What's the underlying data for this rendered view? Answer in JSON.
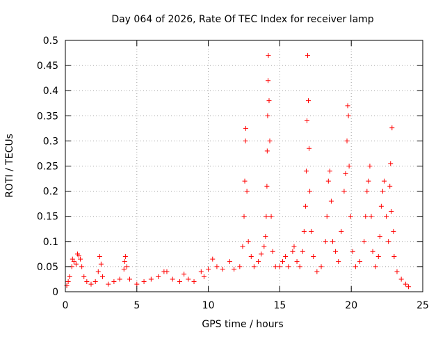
{
  "chart_data": {
    "type": "scatter",
    "title": "Day 064 of 2026, Rate Of TEC Index for receiver lamp",
    "xlabel": "GPS time / hours",
    "ylabel": "ROTI / TECUs",
    "xlim": [
      0,
      25
    ],
    "ylim": [
      0,
      0.5
    ],
    "xticks": [
      0,
      5,
      10,
      15,
      20,
      25
    ],
    "yticks": [
      0,
      0.05,
      0.1,
      0.15,
      0.2,
      0.25,
      0.3,
      0.35,
      0.4,
      0.45,
      0.5
    ],
    "grid": true,
    "marker": "+",
    "color": "#ff0000",
    "series": [
      {
        "name": "ROTI",
        "points": [
          [
            0.1,
            0.012
          ],
          [
            0.2,
            0.02
          ],
          [
            0.3,
            0.03
          ],
          [
            0.45,
            0.05
          ],
          [
            0.5,
            0.065
          ],
          [
            0.6,
            0.06
          ],
          [
            0.75,
            0.055
          ],
          [
            0.85,
            0.075
          ],
          [
            0.95,
            0.072
          ],
          [
            1.05,
            0.065
          ],
          [
            1.15,
            0.05
          ],
          [
            1.3,
            0.03
          ],
          [
            1.5,
            0.02
          ],
          [
            1.8,
            0.015
          ],
          [
            2.1,
            0.02
          ],
          [
            2.3,
            0.04
          ],
          [
            2.4,
            0.07
          ],
          [
            2.5,
            0.055
          ],
          [
            2.6,
            0.03
          ],
          [
            3.0,
            0.015
          ],
          [
            3.4,
            0.02
          ],
          [
            3.8,
            0.025
          ],
          [
            4.1,
            0.045
          ],
          [
            4.15,
            0.06
          ],
          [
            4.2,
            0.07
          ],
          [
            4.3,
            0.05
          ],
          [
            4.5,
            0.025
          ],
          [
            5.0,
            0.015
          ],
          [
            5.5,
            0.02
          ],
          [
            6.0,
            0.025
          ],
          [
            6.5,
            0.03
          ],
          [
            6.9,
            0.04
          ],
          [
            7.1,
            0.04
          ],
          [
            7.5,
            0.025
          ],
          [
            8.0,
            0.02
          ],
          [
            8.3,
            0.035
          ],
          [
            8.6,
            0.025
          ],
          [
            9.0,
            0.02
          ],
          [
            9.5,
            0.04
          ],
          [
            9.7,
            0.03
          ],
          [
            10.0,
            0.045
          ],
          [
            10.3,
            0.065
          ],
          [
            10.6,
            0.05
          ],
          [
            11.0,
            0.045
          ],
          [
            11.5,
            0.06
          ],
          [
            11.8,
            0.045
          ],
          [
            12.2,
            0.05
          ],
          [
            12.4,
            0.09
          ],
          [
            12.5,
            0.15
          ],
          [
            12.55,
            0.22
          ],
          [
            12.6,
            0.3
          ],
          [
            12.62,
            0.325
          ],
          [
            12.7,
            0.2
          ],
          [
            12.8,
            0.1
          ],
          [
            13.0,
            0.07
          ],
          [
            13.2,
            0.05
          ],
          [
            13.5,
            0.06
          ],
          [
            13.7,
            0.075
          ],
          [
            13.9,
            0.09
          ],
          [
            14.0,
            0.11
          ],
          [
            14.05,
            0.15
          ],
          [
            14.1,
            0.21
          ],
          [
            14.12,
            0.28
          ],
          [
            14.15,
            0.35
          ],
          [
            14.18,
            0.42
          ],
          [
            14.2,
            0.47
          ],
          [
            14.25,
            0.38
          ],
          [
            14.3,
            0.3
          ],
          [
            14.4,
            0.15
          ],
          [
            14.5,
            0.08
          ],
          [
            14.7,
            0.05
          ],
          [
            15.0,
            0.05
          ],
          [
            15.2,
            0.06
          ],
          [
            15.4,
            0.07
          ],
          [
            15.6,
            0.05
          ],
          [
            15.9,
            0.08
          ],
          [
            16.0,
            0.09
          ],
          [
            16.2,
            0.06
          ],
          [
            16.4,
            0.05
          ],
          [
            16.6,
            0.08
          ],
          [
            16.7,
            0.12
          ],
          [
            16.8,
            0.17
          ],
          [
            16.85,
            0.24
          ],
          [
            16.9,
            0.34
          ],
          [
            16.95,
            0.47
          ],
          [
            17.0,
            0.38
          ],
          [
            17.05,
            0.285
          ],
          [
            17.1,
            0.2
          ],
          [
            17.2,
            0.12
          ],
          [
            17.35,
            0.07
          ],
          [
            17.6,
            0.04
          ],
          [
            17.9,
            0.05
          ],
          [
            18.2,
            0.1
          ],
          [
            18.3,
            0.15
          ],
          [
            18.4,
            0.22
          ],
          [
            18.5,
            0.24
          ],
          [
            18.6,
            0.18
          ],
          [
            18.7,
            0.1
          ],
          [
            18.9,
            0.08
          ],
          [
            19.1,
            0.06
          ],
          [
            19.3,
            0.12
          ],
          [
            19.5,
            0.2
          ],
          [
            19.6,
            0.235
          ],
          [
            19.7,
            0.3
          ],
          [
            19.75,
            0.37
          ],
          [
            19.8,
            0.35
          ],
          [
            19.85,
            0.25
          ],
          [
            19.95,
            0.15
          ],
          [
            20.1,
            0.08
          ],
          [
            20.3,
            0.05
          ],
          [
            20.6,
            0.06
          ],
          [
            20.9,
            0.1
          ],
          [
            21.0,
            0.15
          ],
          [
            21.1,
            0.2
          ],
          [
            21.2,
            0.22
          ],
          [
            21.3,
            0.25
          ],
          [
            21.4,
            0.15
          ],
          [
            21.5,
            0.08
          ],
          [
            21.7,
            0.05
          ],
          [
            21.9,
            0.07
          ],
          [
            22.0,
            0.11
          ],
          [
            22.1,
            0.17
          ],
          [
            22.2,
            0.2
          ],
          [
            22.3,
            0.22
          ],
          [
            22.45,
            0.15
          ],
          [
            22.6,
            0.1
          ],
          [
            22.7,
            0.21
          ],
          [
            22.75,
            0.255
          ],
          [
            22.8,
            0.16
          ],
          [
            22.85,
            0.326
          ],
          [
            22.95,
            0.12
          ],
          [
            23.0,
            0.07
          ],
          [
            23.2,
            0.04
          ],
          [
            23.5,
            0.025
          ],
          [
            23.8,
            0.015
          ],
          [
            24.0,
            0.01
          ]
        ]
      }
    ]
  }
}
